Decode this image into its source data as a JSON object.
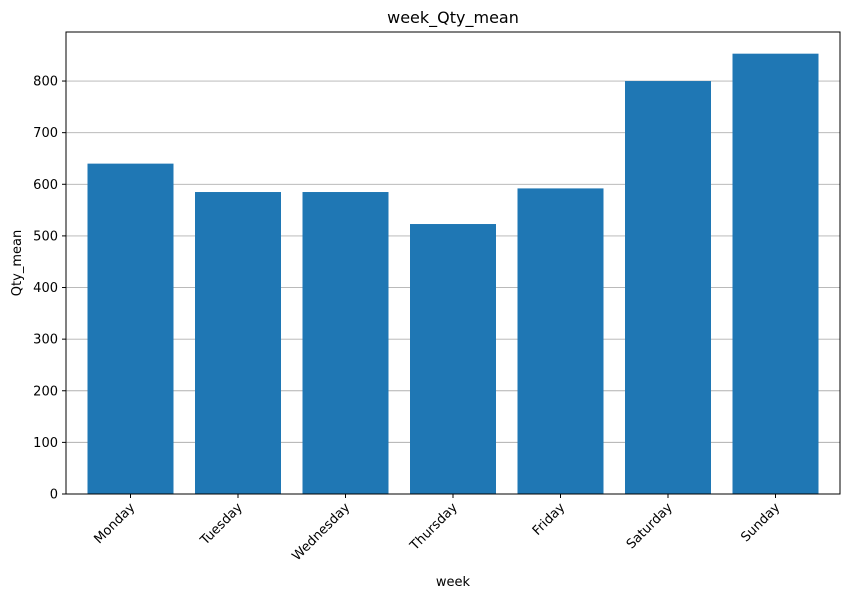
{
  "chart_data": {
    "type": "bar",
    "title": "week_Qty_mean",
    "xlabel": "week",
    "ylabel": "Qty_mean",
    "categories": [
      "Monday",
      "Tuesday",
      "Wednesday",
      "Thursday",
      "Friday",
      "Saturday",
      "Sunday"
    ],
    "values": [
      640,
      585,
      585,
      523,
      592,
      800,
      853
    ],
    "ylim": [
      0,
      895
    ],
    "yticks": [
      0,
      100,
      200,
      300,
      400,
      500,
      600,
      700,
      800
    ],
    "grid": "y-axis",
    "legend": "none",
    "bar_color": "#1f77b4"
  }
}
